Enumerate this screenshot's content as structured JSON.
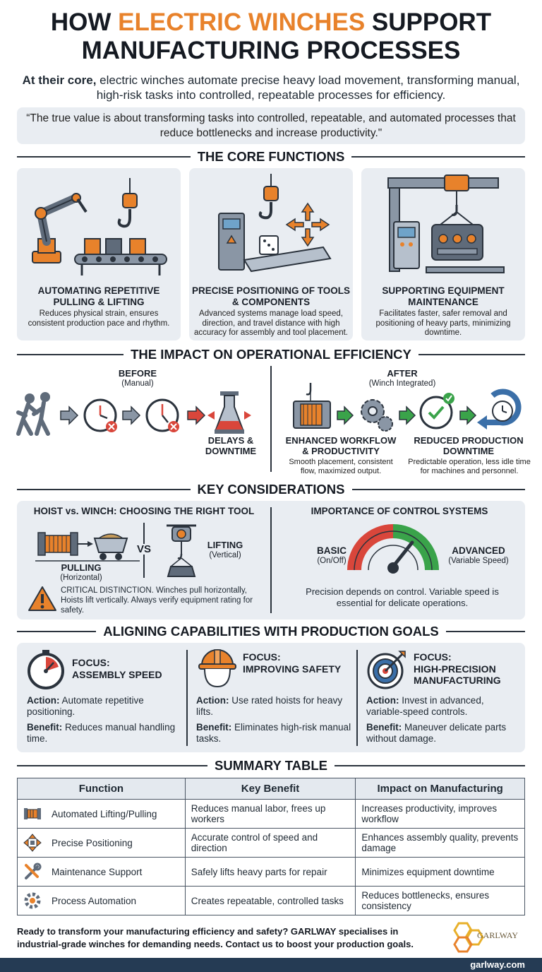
{
  "header": {
    "title_line1_start": "HOW ",
    "title_line1_accent": "ELECTRIC WINCHES",
    "title_line1_end": " SUPPORT",
    "title_line2": "MANUFACTURING PROCESSES",
    "intro_bold": "At their core,",
    "intro_rest": " electric winches automate precise heavy load movement, transforming manual, high-risk tasks into controlled, repeatable processes for efficiency.",
    "quote": "“The true value is about transforming tasks into controlled, repeatable, and automated processes that reduce bottlenecks and increase productivity.\""
  },
  "core": {
    "heading": "THE CORE FUNCTIONS",
    "cards": [
      {
        "title": "AUTOMATING REPETITIVE PULLING & LIFTING",
        "desc": "Reduces physical strain, ensures consistent production pace and rhythm.",
        "icon": "robot-arm-conveyor-icon"
      },
      {
        "title": "PRECISE POSITIONING OF TOOLS & COMPONENTS",
        "desc": "Advanced systems manage load speed, direction, and travel distance with high accuracy for assembly and tool placement.",
        "icon": "hook-positioning-icon"
      },
      {
        "title": "SUPPORTING EQUIPMENT MAINTENANCE",
        "desc": "Facilitates faster, safer removal and positioning of heavy parts, minimizing downtime.",
        "icon": "gantry-engine-icon"
      }
    ]
  },
  "impact": {
    "heading": "THE IMPACT ON OPERATIONAL EFFICIENCY",
    "before_label": "BEFORE",
    "before_sub": "(Manual)",
    "before_end": "DELAYS & DOWNTIME",
    "after_label": "AFTER",
    "after_sub": "(Winch Integrated)",
    "after_items": [
      {
        "title": "ENHANCED WORKFLOW & PRODUCTIVITY",
        "desc": "Smooth placement, consistent flow, maximized output."
      },
      {
        "title": "REDUCED PRODUCTION DOWNTIME",
        "desc": "Predictable operation, less idle time for machines and personnel."
      }
    ]
  },
  "considerations": {
    "heading": "KEY CONSIDERATIONS",
    "left_title": "HOIST vs. WINCH: CHOOSING THE RIGHT TOOL",
    "pulling": "PULLING",
    "pulling_sub": "(Horizontal)",
    "vs": "VS",
    "lifting": "LIFTING",
    "lifting_sub": "(Vertical)",
    "critical": "CRITICAL DISTINCTION. Winches pull horizontally, Hoists lift vertically. Always verify equipment rating for safety.",
    "right_title": "IMPORTANCE OF CONTROL SYSTEMS",
    "basic": "BASIC",
    "basic_sub": "(On/Off)",
    "advanced": "ADVANCED",
    "advanced_sub": "(Variable Speed)",
    "control_note": "Precision depends on control. Variable speed is essential for delicate operations."
  },
  "goals": {
    "heading": "ALIGNING CAPABILITIES WITH PRODUCTION GOALS",
    "focus_label": "FOCUS:",
    "action_label": "Action:",
    "benefit_label": "Benefit:",
    "items": [
      {
        "focus": "ASSEMBLY SPEED",
        "action": " Automate repetitive positioning.",
        "benefit": " Reduces manual handling time."
      },
      {
        "focus": "IMPROVING SAFETY",
        "action": " Use rated hoists for heavy lifts.",
        "benefit": " Eliminates high-risk manual tasks."
      },
      {
        "focus": "HIGH-PRECISION MANUFACTURING",
        "action": " Invest in advanced, variable-speed controls.",
        "benefit": " Maneuver delicate parts without damage."
      }
    ]
  },
  "summary": {
    "heading": "SUMMARY TABLE",
    "columns": [
      "Function",
      "Key Benefit",
      "Impact on Manufacturing"
    ],
    "rows": [
      {
        "function": "Automated Lifting/Pulling",
        "benefit": "Reduces manual labor, frees up workers",
        "impact": "Increases productivity, improves workflow"
      },
      {
        "function": "Precise Positioning",
        "benefit": "Accurate control of speed and direction",
        "impact": "Enhances assembly quality, prevents damage"
      },
      {
        "function": "Maintenance Support",
        "benefit": "Safely lifts heavy parts for repair",
        "impact": "Minimizes equipment downtime"
      },
      {
        "function": "Process Automation",
        "benefit": "Creates repeatable, controlled tasks",
        "impact": "Reduces bottlenecks, ensures consistency"
      }
    ]
  },
  "footer": {
    "cta": "Ready to transform your manufacturing efficiency and safety? GARLWAY specialises in industrial-grade winches for demanding needs. Contact us to boost your production goals.",
    "logo_text": "GARLWAY",
    "site": "garlway.com"
  },
  "colors": {
    "accent": "#e8822b",
    "panel": "#e9edf2",
    "navy": "#253b54",
    "red": "#d9463b",
    "green": "#3aa34a"
  }
}
